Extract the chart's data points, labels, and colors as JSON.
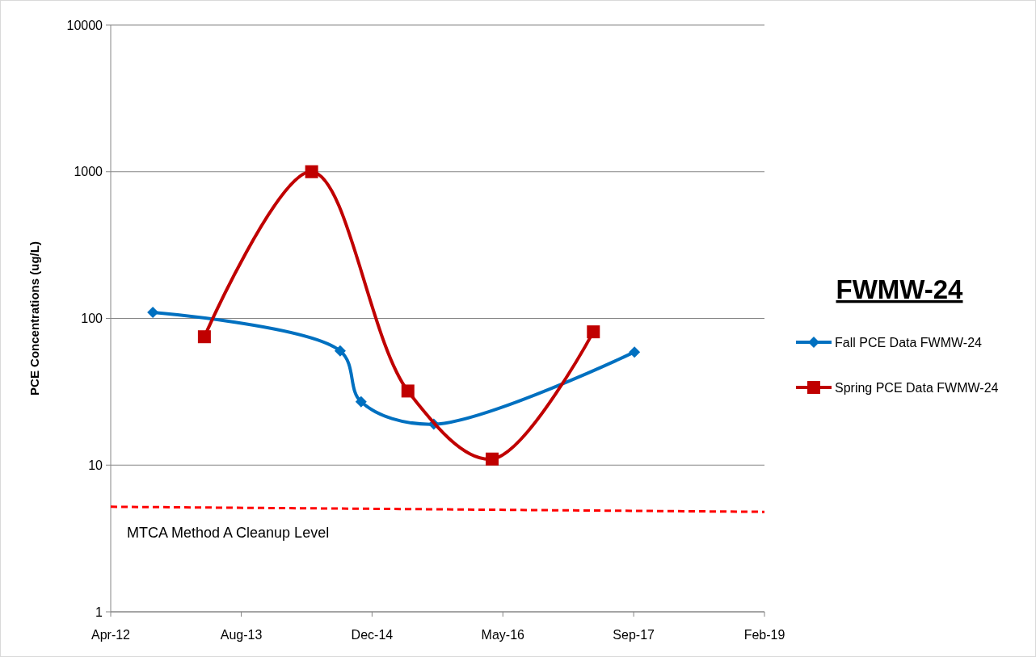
{
  "chart_data": {
    "type": "line",
    "title": "FWMW-24",
    "ylabel": "PCE Concentrations (ug/L)",
    "log": "y",
    "grid": "y",
    "legend": "right",
    "xlim": [
      "2012-04-01",
      "2019-02-03"
    ],
    "xticks": [
      {
        "value": "2012-04-01",
        "label": "Apr-12"
      },
      {
        "value": "2013-08-13",
        "label": "Aug-13"
      },
      {
        "value": "2014-12-26",
        "label": "Dec-14"
      },
      {
        "value": "2016-05-09",
        "label": "May-16"
      },
      {
        "value": "2017-09-21",
        "label": "Sep-17"
      },
      {
        "value": "2019-02-03",
        "label": "Feb-19"
      }
    ],
    "ylim": [
      1,
      10000
    ],
    "yticks": [
      1,
      10,
      100,
      1000,
      10000
    ],
    "series": [
      {
        "name": "Fall PCE Data FWMW-24",
        "color": "#0070c0",
        "marker": "diamond",
        "x": [
          "2012-09-09",
          "2014-08-26",
          "2014-11-14",
          "2015-08-19",
          "2017-09-24"
        ],
        "values": [
          110,
          60,
          27,
          19,
          59
        ]
      },
      {
        "name": "Spring PCE Data FWMW-24",
        "color": "#c00000",
        "marker": "square",
        "x": [
          "2013-03-25",
          "2014-05-09",
          "2015-05-12",
          "2016-03-29",
          "2017-04-20"
        ],
        "values": [
          75,
          1000,
          32,
          11,
          81
        ]
      },
      {
        "color": "#ff0000",
        "marker": "none",
        "line_style": "dashed",
        "x": [
          "2012-04-01",
          "2019-02-03"
        ],
        "values": [
          5.2,
          4.8
        ]
      }
    ],
    "annotations": [
      "MTCA Method A Cleanup Level"
    ]
  }
}
